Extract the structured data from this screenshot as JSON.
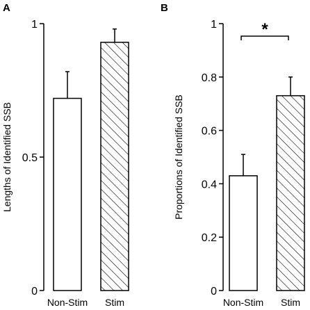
{
  "chart_data": [
    {
      "panel": "A",
      "type": "bar",
      "categories": [
        "Non-Stim",
        "Stim"
      ],
      "values": [
        0.72,
        0.93
      ],
      "errors": [
        0.1,
        0.05
      ],
      "bar_fills": [
        "white",
        "hatched"
      ],
      "ylabel": "Lengths of Identified SSB",
      "xlabel": "",
      "ylim": [
        0,
        1
      ],
      "yticks": [
        0,
        0.5,
        1
      ],
      "ytick_labels": [
        "0",
        "0.5",
        "1"
      ],
      "significance": null
    },
    {
      "panel": "B",
      "type": "bar",
      "categories": [
        "Non-Stim",
        "Stim"
      ],
      "values": [
        0.43,
        0.73
      ],
      "errors": [
        0.08,
        0.07
      ],
      "bar_fills": [
        "white",
        "hatched"
      ],
      "ylabel": "Proportions of Identified SSB",
      "xlabel": "",
      "ylim": [
        0,
        1
      ],
      "yticks": [
        0,
        0.2,
        0.4,
        0.6,
        0.8,
        1
      ],
      "ytick_labels": [
        "0",
        "0.2",
        "0.4",
        "0.6",
        "0.8",
        "1"
      ],
      "significance": "*"
    }
  ]
}
